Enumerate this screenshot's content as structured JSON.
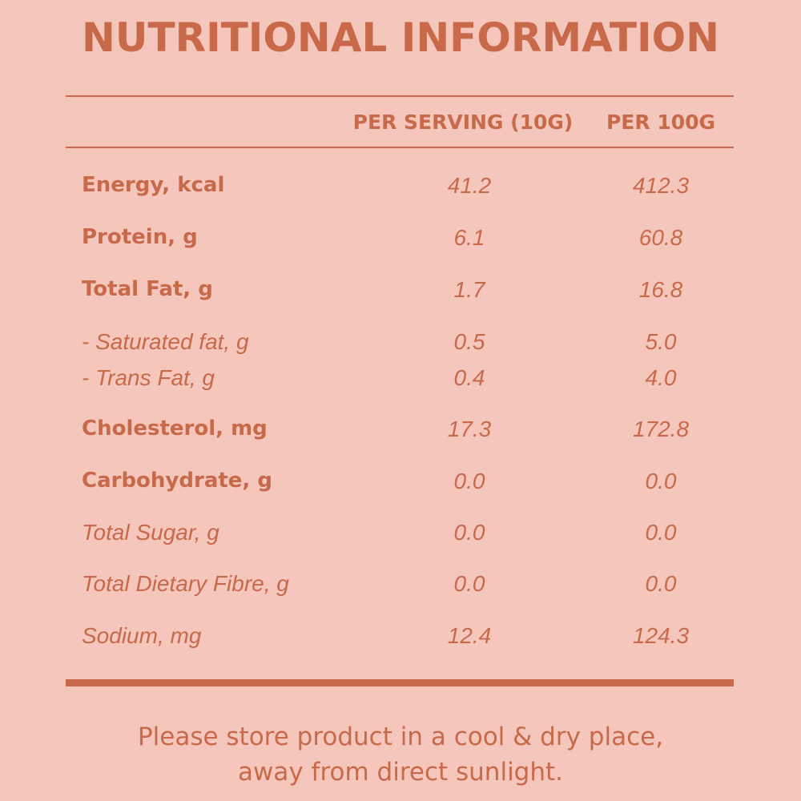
{
  "title": "NUTRITIONAL INFORMATION",
  "columns": {
    "per_serving": "PER SERVING (10G)",
    "per_100g": "PER 100G"
  },
  "rows": [
    {
      "label": "Energy, kcal",
      "per_serving": "41.2",
      "per_100g": "412.3"
    },
    {
      "label": "Protein, g",
      "per_serving": "6.1",
      "per_100g": "60.8"
    },
    {
      "label": "Total Fat, g",
      "per_serving": "1.7",
      "per_100g": "16.8"
    },
    {
      "label": "- Saturated fat, g",
      "per_serving": "0.5",
      "per_100g": "5.0"
    },
    {
      "label": "- Trans Fat, g",
      "per_serving": "0.4",
      "per_100g": "4.0"
    },
    {
      "label": "Cholesterol, mg",
      "per_serving": "17.3",
      "per_100g": "172.8"
    },
    {
      "label": "Carbohydrate, g",
      "per_serving": "0.0",
      "per_100g": "0.0"
    },
    {
      "label": "Total Sugar, g",
      "per_serving": "0.0",
      "per_100g": "0.0"
    },
    {
      "label": "Total Dietary Fibre, g",
      "per_serving": "0.0",
      "per_100g": "0.0"
    },
    {
      "label": "Sodium, mg",
      "per_serving": "12.4",
      "per_100g": "124.3"
    }
  ],
  "footer": {
    "line1": "Please store product in a cool & dry place,",
    "line2": "away from direct sunlight."
  },
  "colors": {
    "background": "#f4c6bc",
    "text": "#c8694a"
  }
}
